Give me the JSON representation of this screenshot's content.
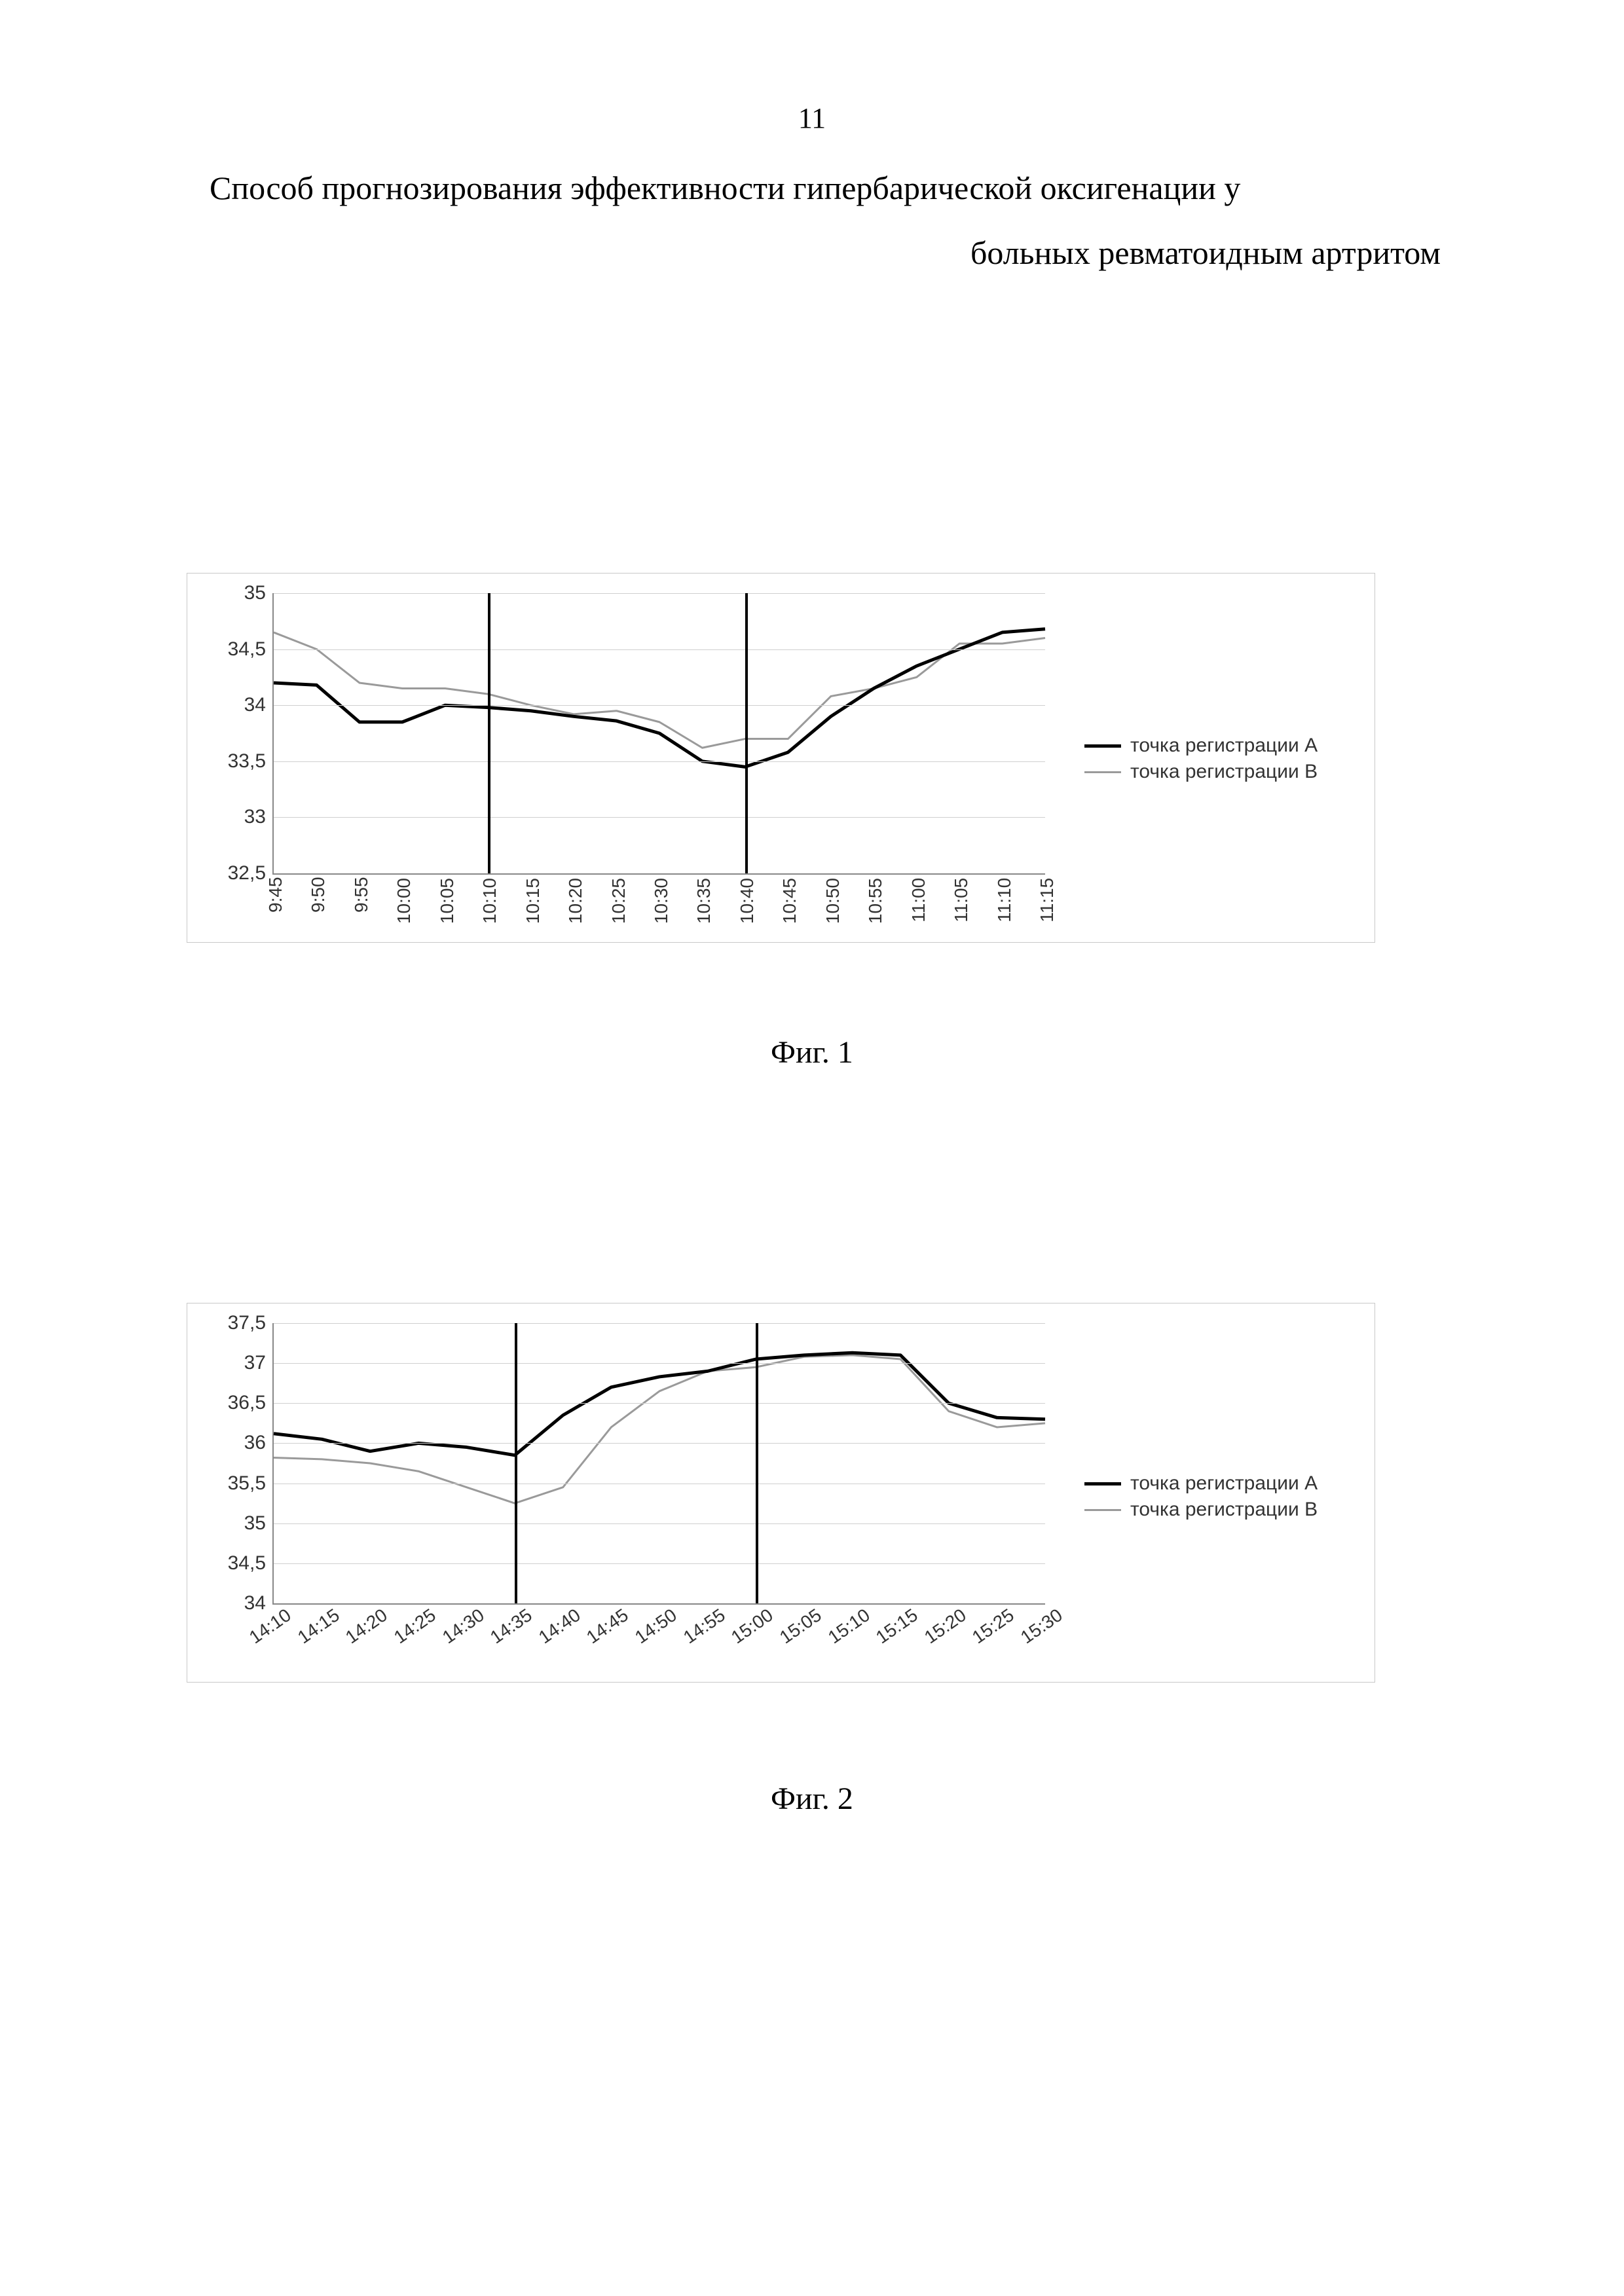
{
  "page_number": "11",
  "title_line1": "Способ прогнозирования эффективности гипербарической оксигенации у",
  "title_line2": "больных ревматоидным артритом",
  "legend_a": "точка регистрации А",
  "legend_b": "точка регистрации В",
  "fig1_caption": "Фиг. 1",
  "fig2_caption": "Фиг. 2",
  "chart1": {
    "type": "line",
    "ylim": [
      32.5,
      35.0
    ],
    "ytick_step": 0.5,
    "yticks": [
      "35",
      "34,5",
      "34",
      "33,5",
      "33",
      "32,5"
    ],
    "xlabels": [
      "9:45",
      "9:50",
      "9:55",
      "10:00",
      "10:05",
      "10:10",
      "10:15",
      "10:20",
      "10:25",
      "10:30",
      "10:35",
      "10:40",
      "10:45",
      "10:50",
      "10:55",
      "11:00",
      "11:05",
      "11:10",
      "11:15"
    ],
    "series_a": [
      34.2,
      34.18,
      33.85,
      33.85,
      34.0,
      33.98,
      33.95,
      33.9,
      33.86,
      33.75,
      33.5,
      33.45,
      33.58,
      33.9,
      34.15,
      34.35,
      34.5,
      34.65,
      34.68
    ],
    "series_b": [
      34.65,
      34.5,
      34.2,
      34.15,
      34.15,
      34.1,
      34.0,
      33.92,
      33.95,
      33.85,
      33.62,
      33.7,
      33.7,
      34.08,
      34.15,
      34.25,
      34.55,
      34.55,
      34.6
    ],
    "series_a_color": "#000000",
    "series_b_color": "#9a9a9a",
    "series_a_width": 5,
    "series_b_width": 3,
    "vlines_at_indices": [
      5,
      11
    ],
    "grid_color": "#cfcfcf",
    "background_color": "#ffffff",
    "tick_fontsize": 30,
    "tick_font": "Arial"
  },
  "chart2": {
    "type": "line",
    "ylim": [
      34.0,
      37.5
    ],
    "ytick_step": 0.5,
    "yticks": [
      "37,5",
      "37",
      "36,5",
      "36",
      "35,5",
      "35",
      "34,5",
      "34"
    ],
    "xlabels": [
      "14:10",
      "14:15",
      "14:20",
      "14:25",
      "14:30",
      "14:35",
      "14:40",
      "14:45",
      "14:50",
      "14:55",
      "15:00",
      "15:05",
      "15:10",
      "15:15",
      "15:20",
      "15:25",
      "15:30"
    ],
    "series_a": [
      36.12,
      36.05,
      35.9,
      36.0,
      35.95,
      35.85,
      36.35,
      36.7,
      36.83,
      36.9,
      37.05,
      37.1,
      37.13,
      37.1,
      36.5,
      36.32,
      36.3
    ],
    "series_b": [
      35.82,
      35.8,
      35.75,
      35.65,
      35.45,
      35.25,
      35.45,
      36.2,
      36.65,
      36.9,
      36.95,
      37.08,
      37.1,
      37.05,
      36.4,
      36.2,
      36.25
    ],
    "series_a_color": "#000000",
    "series_b_color": "#9a9a9a",
    "series_a_width": 5,
    "series_b_width": 3,
    "vlines_at_indices": [
      5,
      10
    ],
    "grid_color": "#cfcfcf",
    "background_color": "#ffffff",
    "tick_fontsize": 30,
    "tick_font": "Arial"
  }
}
